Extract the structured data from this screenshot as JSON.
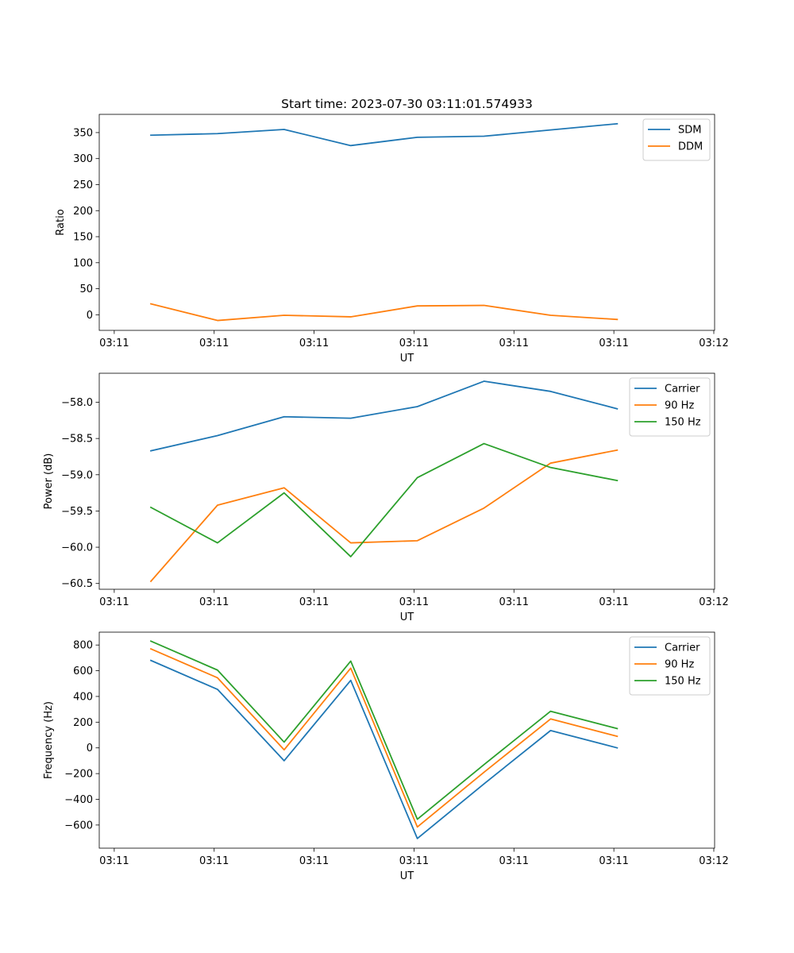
{
  "chart_data": [
    {
      "type": "line",
      "title": "Start time: 2023-07-30 03:11:01.574933",
      "xlabel": "UT",
      "ylabel": "Ratio",
      "x": [
        1,
        2,
        3,
        4,
        5,
        6,
        7,
        8
      ],
      "xlim": [
        0.225,
        9.462
      ],
      "xticks": [
        0.45,
        1.95,
        3.45,
        4.95,
        6.45,
        7.95,
        9.45
      ],
      "xticklabels": [
        "03:11",
        "03:11",
        "03:11",
        "03:11",
        "03:11",
        "03:11",
        "03:12"
      ],
      "ylim": [
        -30,
        385
      ],
      "yticks": [
        0,
        50,
        100,
        150,
        200,
        250,
        300,
        350
      ],
      "yticklabels": [
        "0",
        "50",
        "100",
        "150",
        "200",
        "250",
        "300",
        "350"
      ],
      "legend": "top-right",
      "series": [
        {
          "name": "SDM",
          "color": "#1f77b4",
          "values": [
            345,
            348,
            356,
            325,
            341,
            343,
            355,
            367
          ]
        },
        {
          "name": "DDM",
          "color": "#ff7f0e",
          "values": [
            21,
            -11,
            -1,
            -4,
            17,
            18,
            -1,
            -9
          ]
        }
      ]
    },
    {
      "type": "line",
      "title": "",
      "xlabel": "UT",
      "ylabel": "Power (dB)",
      "x": [
        1,
        2,
        3,
        4,
        5,
        6,
        7,
        8
      ],
      "xlim": [
        0.225,
        9.462
      ],
      "xticks": [
        0.45,
        1.95,
        3.45,
        4.95,
        6.45,
        7.95,
        9.45
      ],
      "xticklabels": [
        "03:11",
        "03:11",
        "03:11",
        "03:11",
        "03:11",
        "03:11",
        "03:12"
      ],
      "ylim": [
        -60.58,
        -57.6
      ],
      "yticks": [
        -60.5,
        -60.0,
        -59.5,
        -59.0,
        -58.5,
        -58.0
      ],
      "yticklabels": [
        "−60.5",
        "−60.0",
        "−59.5",
        "−59.0",
        "−58.5",
        "−58.0"
      ],
      "legend": "top-right",
      "series": [
        {
          "name": "Carrier",
          "color": "#1f77b4",
          "values": [
            -58.67,
            -58.46,
            -58.2,
            -58.22,
            -58.06,
            -57.71,
            -57.85,
            -58.09
          ]
        },
        {
          "name": "90 Hz",
          "color": "#ff7f0e",
          "values": [
            -60.47,
            -59.42,
            -59.18,
            -59.94,
            -59.91,
            -59.46,
            -58.84,
            -58.66
          ]
        },
        {
          "name": "150 Hz",
          "color": "#2ca02c",
          "values": [
            -59.45,
            -59.94,
            -59.25,
            -60.13,
            -59.04,
            -58.57,
            -58.9,
            -59.08
          ]
        }
      ]
    },
    {
      "type": "line",
      "title": "",
      "xlabel": "UT",
      "ylabel": "Frequency (Hz)",
      "x": [
        1,
        2,
        3,
        4,
        5,
        6,
        7,
        8
      ],
      "xlim": [
        0.225,
        9.462
      ],
      "xticks": [
        0.45,
        1.95,
        3.45,
        4.95,
        6.45,
        7.95,
        9.45
      ],
      "xticklabels": [
        "03:11",
        "03:11",
        "03:11",
        "03:11",
        "03:11",
        "03:11",
        "03:12"
      ],
      "ylim": [
        -780,
        900
      ],
      "yticks": [
        -600,
        -400,
        -200,
        0,
        200,
        400,
        600,
        800
      ],
      "yticklabels": [
        "−600",
        "−400",
        "−200",
        "0",
        "200",
        "400",
        "600",
        "800"
      ],
      "legend": "top-right",
      "series": [
        {
          "name": "Carrier",
          "color": "#1f77b4",
          "values": [
            680,
            455,
            -100,
            525,
            -705,
            -280,
            135,
            0
          ]
        },
        {
          "name": "90 Hz",
          "color": "#ff7f0e",
          "values": [
            770,
            545,
            -15,
            620,
            -615,
            -190,
            225,
            90
          ]
        },
        {
          "name": "150 Hz",
          "color": "#2ca02c",
          "values": [
            830,
            605,
            45,
            675,
            -555,
            -130,
            285,
            150
          ]
        }
      ]
    }
  ]
}
